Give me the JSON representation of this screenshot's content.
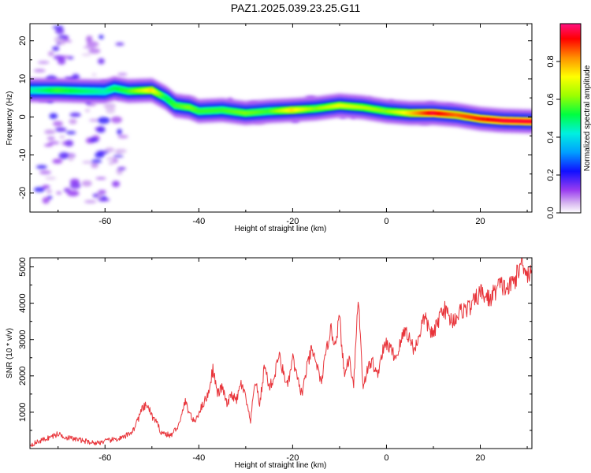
{
  "title": "PAZ1.2025.039.23.25.G11",
  "colors": {
    "snr_line": "#e8343a",
    "background": "#ffffff",
    "axis": "#000000"
  },
  "chart_data": [
    {
      "type": "heatmap",
      "title": "PAZ1.2025.039.23.25.G11",
      "xlabel": "Height of straight line (km)",
      "ylabel": "Frequency (Hz)",
      "xlim": [
        -76,
        31
      ],
      "ylim": [
        -25,
        24.5
      ],
      "x_ticks": [
        -60,
        -40,
        -20,
        0,
        20
      ],
      "y_ticks": [
        20,
        10,
        0,
        -10,
        -20
      ],
      "grid": false,
      "colorbar": {
        "label": "Normalized spectral amplitude",
        "range": [
          0,
          1
        ],
        "ticks": [
          0.0,
          0.2,
          0.4,
          0.6,
          0.8
        ],
        "colormap": "rainbow"
      },
      "ridge": {
        "x": [
          -75,
          -70,
          -65,
          -60,
          -58,
          -55,
          -50,
          -47,
          -45,
          -42,
          -40,
          -35,
          -30,
          -25,
          -20,
          -15,
          -10,
          -5,
          0,
          5,
          10,
          15,
          20,
          25,
          31
        ],
        "y": [
          7,
          7,
          6.8,
          6.7,
          7.5,
          6.8,
          7,
          5,
          3,
          2.5,
          1.5,
          1.8,
          1,
          1.5,
          1.8,
          2.2,
          3,
          2.5,
          1.5,
          1,
          1,
          0.5,
          -0.5,
          -1,
          -1.2
        ],
        "intensity": [
          0.45,
          0.55,
          0.5,
          0.45,
          0.5,
          0.55,
          0.75,
          0.5,
          0.55,
          0.6,
          0.55,
          0.55,
          0.6,
          0.55,
          0.75,
          0.6,
          0.7,
          0.65,
          0.6,
          0.75,
          0.95,
          0.85,
          0.9,
          0.95,
          0.95
        ]
      }
    },
    {
      "type": "line",
      "xlabel": "Height of straight line (km)",
      "ylabel": "SNR (10 * v/v)",
      "xlim": [
        -76,
        31
      ],
      "ylim": [
        0,
        5250
      ],
      "x_ticks": [
        -60,
        -40,
        -20,
        0,
        20
      ],
      "y_ticks": [
        1000,
        2000,
        3000,
        4000,
        5000
      ],
      "grid": false,
      "series": [
        {
          "x": [
            -76,
            -74,
            -72,
            -70,
            -68,
            -66,
            -64,
            -62,
            -60,
            -58,
            -56,
            -54,
            -52,
            -51,
            -50,
            -49,
            -48,
            -46,
            -44,
            -43,
            -42,
            -41,
            -40,
            -38,
            -37,
            -36,
            -35,
            -34,
            -33,
            -32,
            -31,
            -30,
            -29,
            -28,
            -27,
            -26,
            -25,
            -24,
            -23,
            -22,
            -21,
            -20,
            -19,
            -18,
            -17,
            -16,
            -15,
            -14,
            -13,
            -12,
            -11,
            -10,
            -9,
            -8,
            -7,
            -6,
            -5,
            -4,
            -3,
            -2,
            -1,
            0,
            2,
            4,
            6,
            8,
            10,
            12,
            14,
            16,
            18,
            20,
            22,
            24,
            26,
            28,
            29,
            30,
            31
          ],
          "y": [
            100,
            200,
            300,
            400,
            300,
            250,
            200,
            150,
            200,
            250,
            300,
            500,
            1100,
            1200,
            900,
            700,
            450,
            350,
            700,
            1300,
            1000,
            700,
            1000,
            1500,
            2200,
            1500,
            1700,
            1200,
            1500,
            1300,
            1800,
            1400,
            700,
            1900,
            1200,
            2300,
            1700,
            1900,
            2600,
            2100,
            1700,
            2500,
            1900,
            1500,
            2200,
            2700,
            2400,
            1800,
            2500,
            3300,
            2900,
            3600,
            2000,
            2500,
            1800,
            4200,
            1700,
            2200,
            2400,
            2000,
            2600,
            2900,
            2500,
            3300,
            2700,
            3600,
            3100,
            3900,
            3500,
            3800,
            3900,
            4300,
            4100,
            4500,
            4400,
            4800,
            5200,
            4800,
            4900
          ]
        }
      ]
    }
  ]
}
